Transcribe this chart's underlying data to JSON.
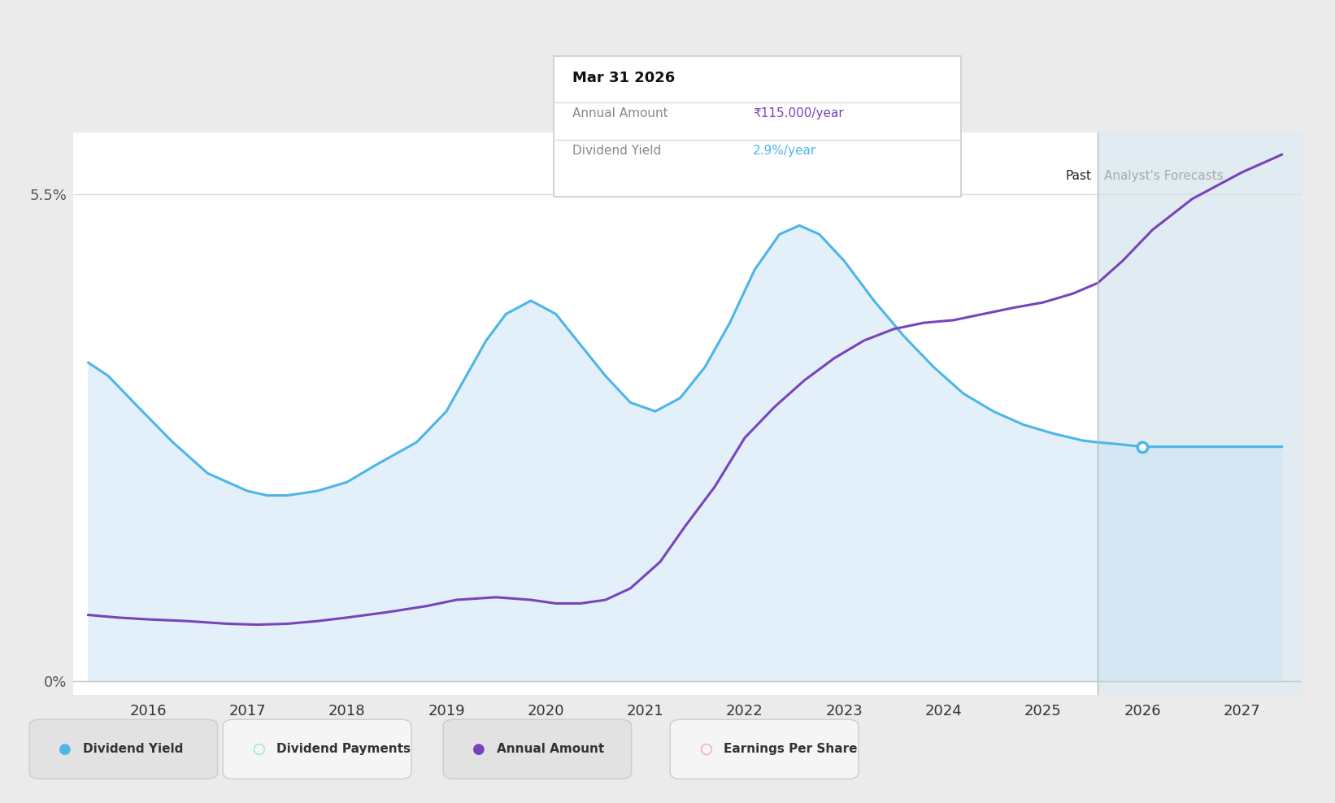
{
  "bg_color": "#ebebeb",
  "chart_bg_color": "#ffffff",
  "x_min": 2015.25,
  "x_max": 2027.6,
  "y_min": -0.15,
  "y_max": 6.2,
  "y_tick_val_0": 0.0,
  "y_tick_val_55": 5.5,
  "x_ticks": [
    2016,
    2017,
    2018,
    2019,
    2020,
    2021,
    2022,
    2023,
    2024,
    2025,
    2026,
    2027
  ],
  "past_line_x": 2025.55,
  "forecast_region_x1": 2025.55,
  "forecast_region_x2": 2027.6,
  "dividend_yield_color": "#4db6e8",
  "dividend_yield_fill_color": "#cce5f5",
  "annual_amount_color": "#7744bb",
  "tooltip_title": "Mar 31 2026",
  "tooltip_annual_amount": "₹115.000/year",
  "tooltip_dividend_yield": "2.9%/year",
  "tooltip_annual_amount_color": "#7744bb",
  "tooltip_dividend_yield_color": "#4db6e8",
  "dividend_yield_x": [
    2015.4,
    2015.6,
    2015.9,
    2016.25,
    2016.6,
    2017.0,
    2017.2,
    2017.4,
    2017.7,
    2018.0,
    2018.3,
    2018.7,
    2019.0,
    2019.2,
    2019.4,
    2019.6,
    2019.85,
    2020.1,
    2020.35,
    2020.6,
    2020.85,
    2021.1,
    2021.35,
    2021.6,
    2021.85,
    2022.1,
    2022.35,
    2022.55,
    2022.75,
    2023.0,
    2023.3,
    2023.6,
    2023.9,
    2024.2,
    2024.5,
    2024.8,
    2025.1,
    2025.4,
    2025.55,
    2025.75,
    2026.0,
    2026.5,
    2027.0,
    2027.4
  ],
  "dividend_yield_y": [
    3.6,
    3.45,
    3.1,
    2.7,
    2.35,
    2.15,
    2.1,
    2.1,
    2.15,
    2.25,
    2.45,
    2.7,
    3.05,
    3.45,
    3.85,
    4.15,
    4.3,
    4.15,
    3.8,
    3.45,
    3.15,
    3.05,
    3.2,
    3.55,
    4.05,
    4.65,
    5.05,
    5.15,
    5.05,
    4.75,
    4.3,
    3.9,
    3.55,
    3.25,
    3.05,
    2.9,
    2.8,
    2.72,
    2.7,
    2.68,
    2.65,
    2.65,
    2.65,
    2.65
  ],
  "annual_amount_x": [
    2015.4,
    2015.7,
    2016.0,
    2016.4,
    2016.8,
    2017.1,
    2017.4,
    2017.7,
    2018.0,
    2018.4,
    2018.8,
    2019.1,
    2019.5,
    2019.85,
    2020.1,
    2020.35,
    2020.6,
    2020.85,
    2021.15,
    2021.4,
    2021.7,
    2022.0,
    2022.3,
    2022.6,
    2022.9,
    2023.2,
    2023.5,
    2023.8,
    2024.1,
    2024.4,
    2024.7,
    2025.0,
    2025.3,
    2025.55,
    2025.8,
    2026.1,
    2026.5,
    2027.0,
    2027.4
  ],
  "annual_amount_y": [
    0.75,
    0.72,
    0.7,
    0.68,
    0.65,
    0.64,
    0.65,
    0.68,
    0.72,
    0.78,
    0.85,
    0.92,
    0.95,
    0.92,
    0.88,
    0.88,
    0.92,
    1.05,
    1.35,
    1.75,
    2.2,
    2.75,
    3.1,
    3.4,
    3.65,
    3.85,
    3.98,
    4.05,
    4.08,
    4.15,
    4.22,
    4.28,
    4.38,
    4.5,
    4.75,
    5.1,
    5.45,
    5.75,
    5.95
  ],
  "forecast_dot_x": 2026.0,
  "forecast_dot_y": 2.65,
  "legend_items": [
    {
      "label": "Dividend Yield",
      "color": "#4db6e8",
      "filled": true
    },
    {
      "label": "Dividend Payments",
      "color": "#7dddd8",
      "filled": false
    },
    {
      "label": "Annual Amount",
      "color": "#7744bb",
      "filled": true
    },
    {
      "label": "Earnings Per Share",
      "color": "#ee88cc",
      "filled": false
    }
  ]
}
